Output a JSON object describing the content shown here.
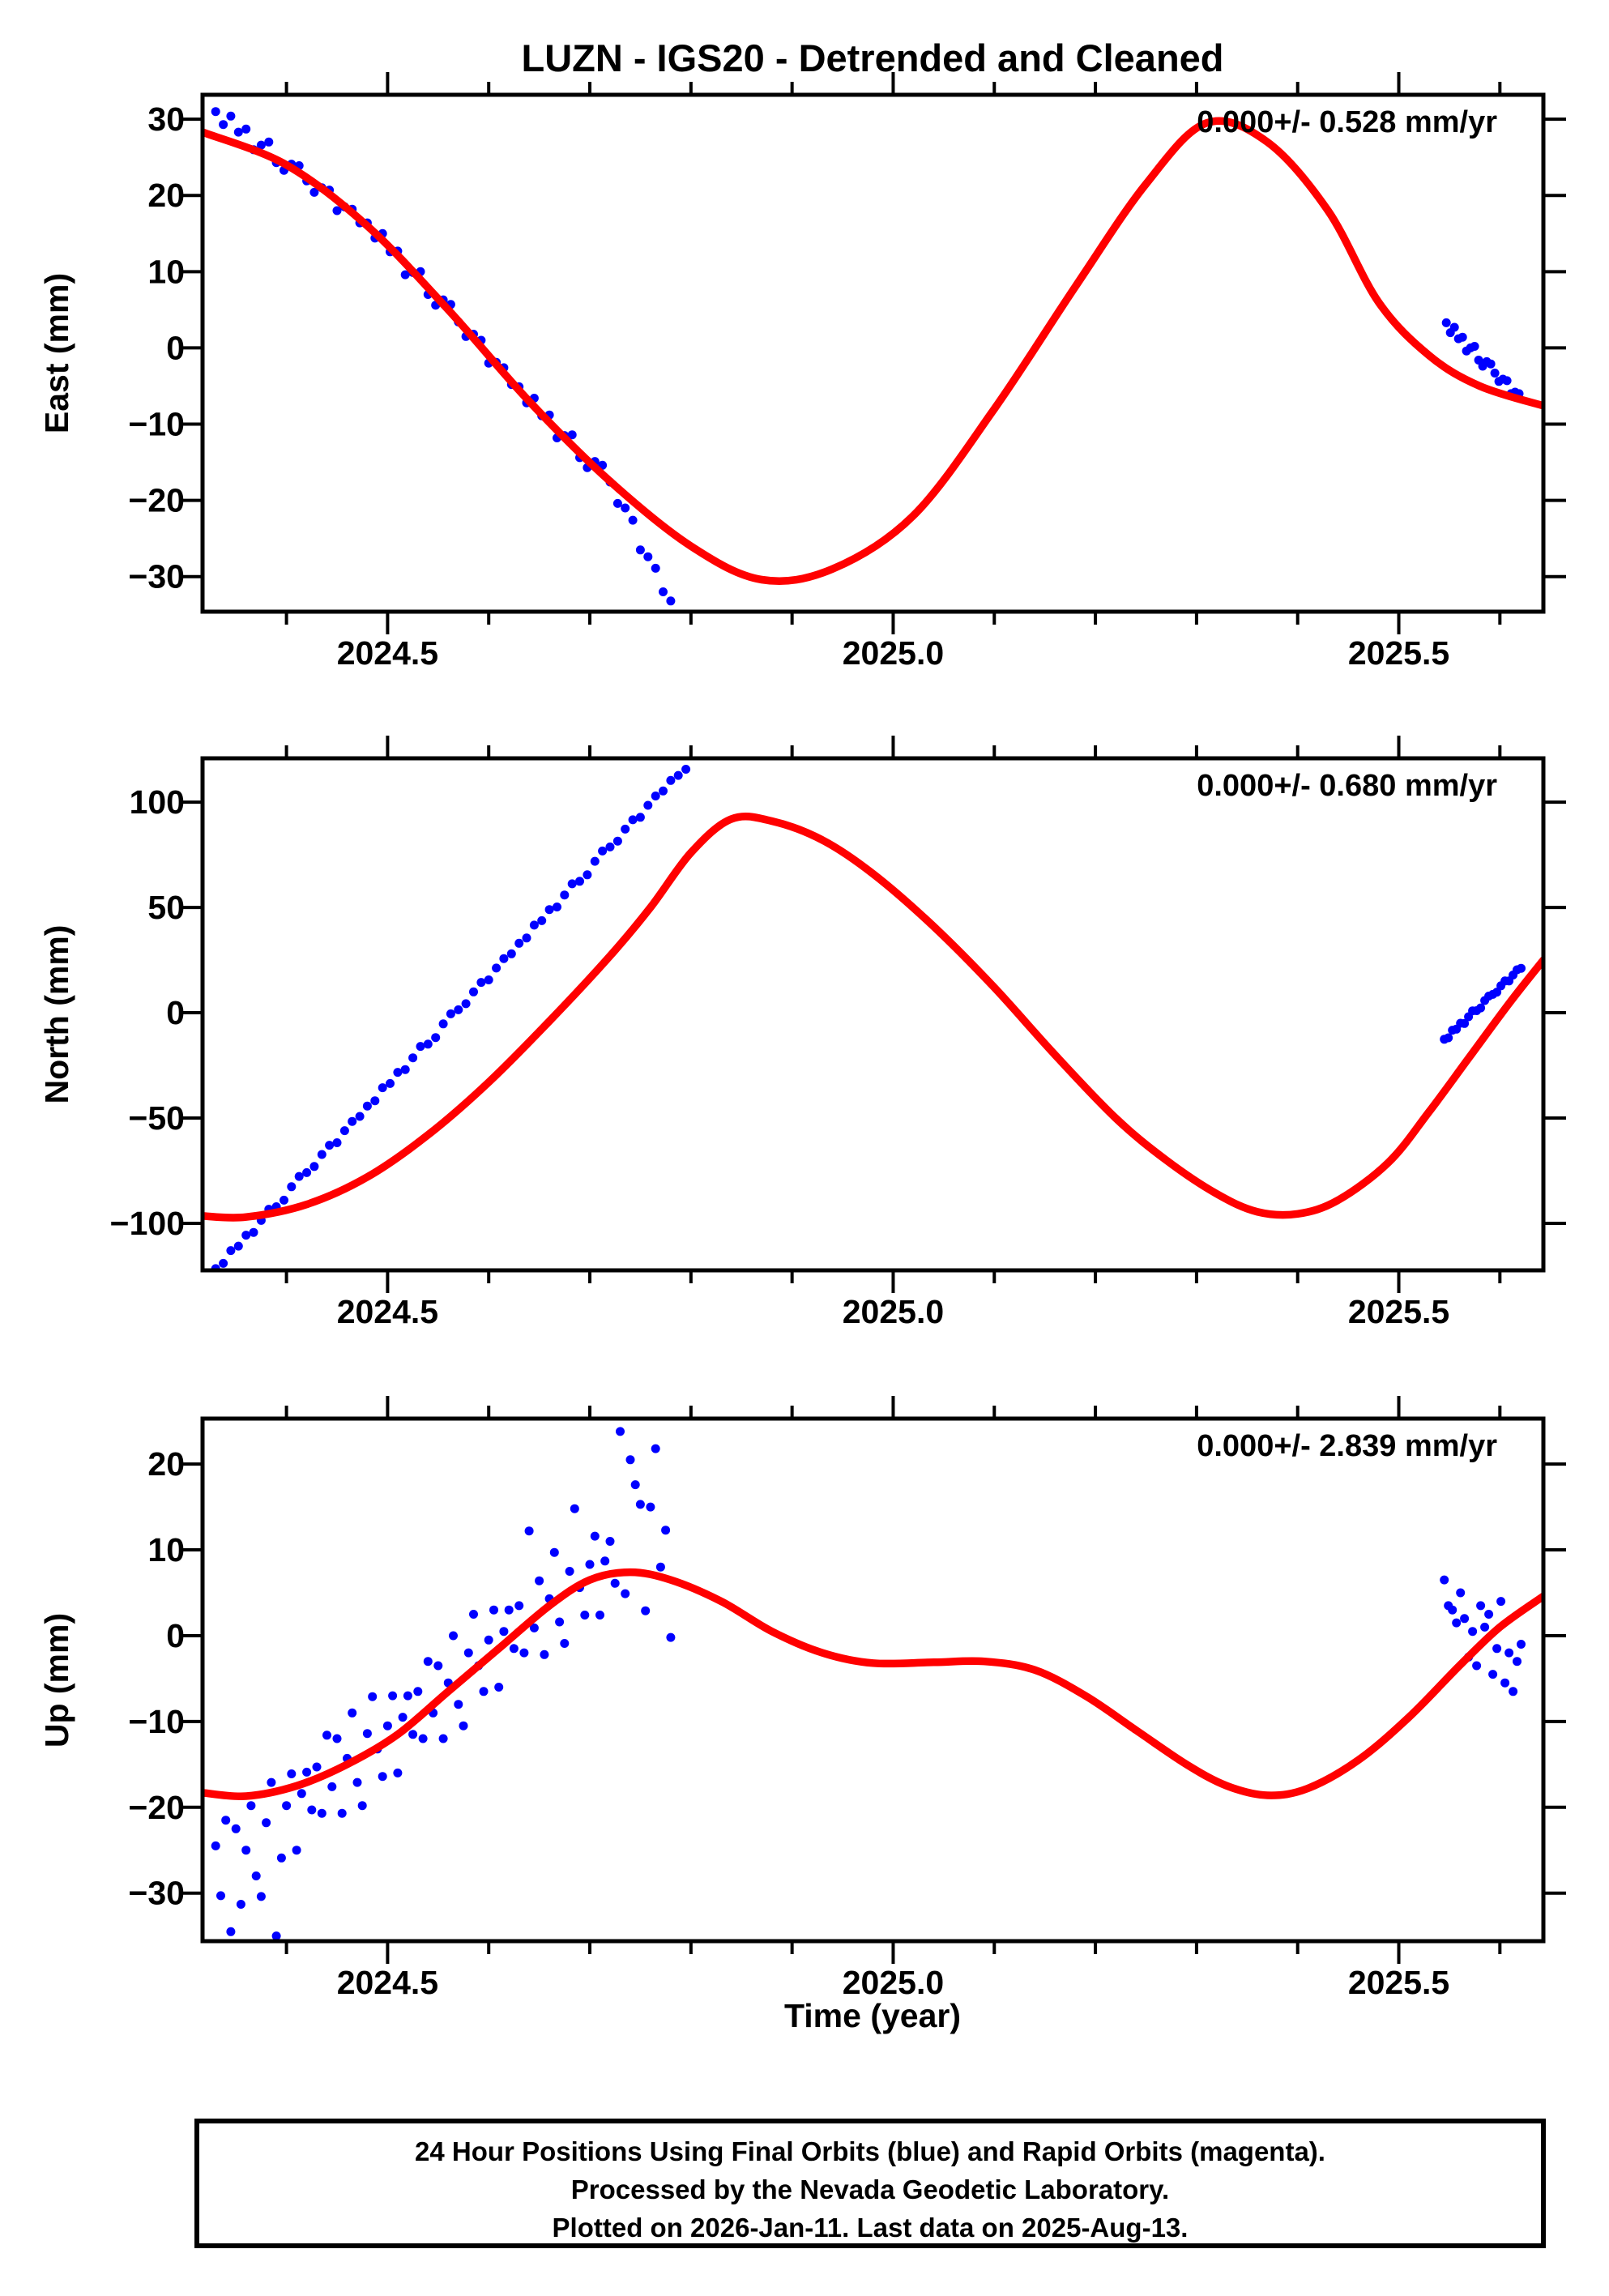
{
  "title": "LUZN - IGS20 - Detrended and Cleaned",
  "xlabel": "Time (year)",
  "footer": {
    "line1": "24 Hour Positions Using Final Orbits (blue) and Rapid Orbits (magenta).",
    "line2": "Processed by the Nevada Geodetic Laboratory.",
    "line3": "Plotted on 2026-Jan-11. Last data on 2025-Aug-13."
  },
  "colors": {
    "final_orbits": "#0000ff",
    "rapid_orbits": "#ff00ff",
    "model": "#ff0000",
    "frame": "#000000"
  },
  "chart_data": {
    "type": "scatter",
    "station": "LUZN",
    "reference_frame": "IGS20",
    "x_range": [
      2024.317,
      2025.643
    ],
    "x_major_ticks": [
      2024.5,
      2025.0,
      2025.5
    ],
    "x_minor_tick_step": 0.1,
    "panels": [
      {
        "id": "east",
        "ylabel": "East (mm)",
        "annotation": "0.000+/- 0.528 mm/yr",
        "rate_mm_yr": 0.0,
        "rate_sigma_mm_yr": 0.528,
        "y_range": [
          -34.6,
          33.2
        ],
        "y_ticks": [
          -30,
          -20,
          -10,
          0,
          10,
          20,
          30
        ],
        "series": [
          {
            "name": "final-orbits-observations",
            "color_key": "final_orbits",
            "segments": [
              {
                "start": 2024.33,
                "step": 0.0075,
                "values": [
                  31.0,
                  29.3,
                  30.4,
                  28.3,
                  28.7,
                  26.0,
                  26.6,
                  27.0,
                  24.3,
                  23.3,
                  24.1,
                  23.9,
                  21.9,
                  20.4,
                  21.0,
                  20.7,
                  18.0,
                  18.5,
                  18.2,
                  16.4,
                  16.4,
                  14.4,
                  15.0,
                  12.6,
                  12.7,
                  9.6,
                  9.9,
                  10.0,
                  7.0,
                  5.6,
                  6.3,
                  5.7,
                  3.4,
                  1.5,
                  1.8,
                  1.0,
                  -2.0,
                  -1.9,
                  -2.6,
                  -4.8,
                  -5.1,
                  -7.2,
                  -6.6,
                  -8.9,
                  -8.8,
                  -11.8,
                  -11.5,
                  -11.4,
                  -14.4,
                  -15.7,
                  -14.9,
                  -15.4,
                  -17.6,
                  -20.4,
                  -21.0,
                  -22.6,
                  -26.5,
                  -27.4,
                  -28.9,
                  -32.0,
                  -33.2
                ]
              },
              {
                "start": 2025.547,
                "step": 0.004,
                "values": [
                  3.3,
                  2.0,
                  2.7,
                  1.2,
                  1.4,
                  -0.4,
                  0.0,
                  0.2,
                  -1.6,
                  -2.4,
                  -1.8,
                  -2.1,
                  -3.3,
                  -4.4,
                  -4.1,
                  -4.3,
                  -6.0,
                  -5.8,
                  -6.0
                ]
              }
            ]
          }
        ],
        "model_curve": [
          [
            2024.317,
            28.3
          ],
          [
            2024.4,
            24.0
          ],
          [
            2024.48,
            16.0
          ],
          [
            2024.56,
            5.0
          ],
          [
            2024.64,
            -7.0
          ],
          [
            2024.72,
            -17.5
          ],
          [
            2024.8,
            -26.0
          ],
          [
            2024.87,
            -30.4
          ],
          [
            2024.94,
            -29.0
          ],
          [
            2025.02,
            -22.0
          ],
          [
            2025.1,
            -8.0
          ],
          [
            2025.18,
            8.0
          ],
          [
            2025.25,
            21.5
          ],
          [
            2025.31,
            29.5
          ],
          [
            2025.37,
            27.0
          ],
          [
            2025.43,
            18.0
          ],
          [
            2025.48,
            6.0
          ],
          [
            2025.53,
            -1.0
          ],
          [
            2025.58,
            -5.0
          ],
          [
            2025.643,
            -7.6
          ]
        ]
      },
      {
        "id": "north",
        "ylabel": "North (mm)",
        "annotation": "0.000+/- 0.680 mm/yr",
        "rate_mm_yr": 0.0,
        "rate_sigma_mm_yr": 0.68,
        "y_range": [
          -122.3,
          120.8
        ],
        "y_ticks": [
          -100,
          -50,
          0,
          50,
          100
        ],
        "series": [
          {
            "name": "final-orbits-observations",
            "color_key": "final_orbits",
            "segments": [
              {
                "start": 2024.33,
                "step": 0.0075,
                "values": [
                  -121.5,
                  -119.0,
                  -112.9,
                  -110.8,
                  -105.6,
                  -104.3,
                  -98.6,
                  -93.3,
                  -92.1,
                  -89.0,
                  -82.6,
                  -77.7,
                  -75.9,
                  -73.0,
                  -67.3,
                  -62.9,
                  -61.7,
                  -56.0,
                  -51.6,
                  -49.2,
                  -44.3,
                  -41.8,
                  -35.6,
                  -33.6,
                  -28.3,
                  -27.0,
                  -21.4,
                  -16.0,
                  -14.9,
                  -11.8,
                  -5.3,
                  -0.5,
                  1.4,
                  4.3,
                  9.9,
                  14.4,
                  15.6,
                  21.2,
                  25.7,
                  28.0,
                  33.0,
                  35.5,
                  41.6,
                  43.7,
                  49.0,
                  50.2,
                  55.9,
                  61.2,
                  62.4,
                  65.5,
                  71.9,
                  76.8,
                  78.7,
                  81.5,
                  87.2,
                  91.6,
                  92.8,
                  98.5,
                  102.9,
                  105.3,
                  110.3,
                  112.7,
                  115.6
                ]
              },
              {
                "start": 2025.545,
                "step": 0.004,
                "values": [
                  -12.6,
                  -11.9,
                  -8.3,
                  -7.8,
                  -5.0,
                  -5.1,
                  -1.9,
                  0.9,
                  1.0,
                  2.3,
                  5.8,
                  7.9,
                  8.7,
                  9.8,
                  12.8,
                  15.1,
                  15.1,
                  17.9,
                  20.4,
                  21.1
                ]
              }
            ]
          }
        ],
        "model_curve": [
          [
            2024.317,
            -96.5
          ],
          [
            2024.36,
            -97.0
          ],
          [
            2024.42,
            -91.0
          ],
          [
            2024.48,
            -78.0
          ],
          [
            2024.54,
            -58.0
          ],
          [
            2024.6,
            -33.0
          ],
          [
            2024.66,
            -4.0
          ],
          [
            2024.72,
            27.0
          ],
          [
            2024.76,
            50.0
          ],
          [
            2024.8,
            76.0
          ],
          [
            2024.84,
            92.0
          ],
          [
            2024.88,
            91.0
          ],
          [
            2024.93,
            82.0
          ],
          [
            2024.98,
            66.0
          ],
          [
            2025.04,
            41.0
          ],
          [
            2025.1,
            12.0
          ],
          [
            2025.16,
            -20.0
          ],
          [
            2025.22,
            -50.0
          ],
          [
            2025.27,
            -70.0
          ],
          [
            2025.32,
            -86.0
          ],
          [
            2025.36,
            -94.5
          ],
          [
            2025.4,
            -95.5
          ],
          [
            2025.44,
            -89.0
          ],
          [
            2025.49,
            -71.0
          ],
          [
            2025.53,
            -47.0
          ],
          [
            2025.57,
            -21.0
          ],
          [
            2025.61,
            5.0
          ],
          [
            2025.643,
            25.0
          ]
        ]
      },
      {
        "id": "up",
        "ylabel": "Up (mm)",
        "annotation": "0.000+/- 2.839 mm/yr",
        "rate_mm_yr": 0.0,
        "rate_sigma_mm_yr": 2.839,
        "y_range": [
          -35.6,
          25.3
        ],
        "y_ticks": [
          -30,
          -20,
          -10,
          0,
          10,
          20
        ],
        "series": [
          {
            "name": "final-orbits-observations",
            "color_key": "final_orbits",
            "segments": [
              {
                "start": 2024.33,
                "step": 0.005,
                "values": [
                  -24.5,
                  -30.3,
                  -21.5,
                  -34.5,
                  -22.5,
                  -31.3,
                  -25.0,
                  -19.8,
                  -28.0,
                  -30.4,
                  -21.8,
                  -17.1,
                  -35.0,
                  -25.9,
                  -19.8,
                  -16.1,
                  -25.0,
                  -18.4,
                  -15.9,
                  -20.3,
                  -15.3,
                  -20.7,
                  -11.6,
                  -17.6,
                  -12.0,
                  -20.7,
                  -14.3,
                  -9.0,
                  -17.1,
                  -19.8,
                  -11.4,
                  -7.1,
                  -13.2,
                  -16.4,
                  -10.5,
                  -7.0,
                  -16.0,
                  -9.5,
                  -7.0,
                  -11.5,
                  -6.5,
                  -12.0,
                  -3.0,
                  -9.0,
                  -3.5,
                  -12.0,
                  -5.5,
                  0.0,
                  -8.0,
                  -10.5,
                  -2.0,
                  2.5,
                  -3.5,
                  -6.5,
                  -0.5,
                  3.0,
                  -6.0,
                  0.5,
                  3.0,
                  -1.5,
                  3.5,
                  -2.0,
                  12.2,
                  0.9,
                  6.4,
                  -2.2,
                  4.3,
                  9.7,
                  1.6,
                  -0.9,
                  7.5,
                  14.8,
                  5.6,
                  2.4,
                  8.3,
                  11.6,
                  2.4,
                  8.7,
                  11.0,
                  6.1,
                  23.8,
                  4.9,
                  20.5,
                  17.6,
                  15.3,
                  2.9,
                  15.0,
                  21.8,
                  8.0,
                  12.3,
                  -0.2
                ]
              },
              {
                "start": 2025.545,
                "step": 0.004,
                "values": [
                  6.5,
                  3.5,
                  3.0,
                  1.5,
                  5.0,
                  2.0,
                  -2.5,
                  0.5,
                  -3.5,
                  3.5,
                  1.0,
                  2.5,
                  -4.5,
                  -1.5,
                  4.0,
                  -5.5,
                  -2.0,
                  -6.5,
                  -3.0,
                  -1.0
                ]
              }
            ]
          }
        ],
        "model_curve": [
          [
            2024.317,
            -18.3
          ],
          [
            2024.36,
            -18.7
          ],
          [
            2024.41,
            -17.5
          ],
          [
            2024.46,
            -15.0
          ],
          [
            2024.51,
            -11.5
          ],
          [
            2024.56,
            -6.5
          ],
          [
            2024.61,
            -1.5
          ],
          [
            2024.66,
            3.5
          ],
          [
            2024.7,
            6.5
          ],
          [
            2024.74,
            7.4
          ],
          [
            2024.78,
            6.5
          ],
          [
            2024.83,
            4.0
          ],
          [
            2024.88,
            0.5
          ],
          [
            2024.93,
            -2.0
          ],
          [
            2024.98,
            -3.2
          ],
          [
            2025.04,
            -3.1
          ],
          [
            2025.09,
            -3.0
          ],
          [
            2025.14,
            -4.0
          ],
          [
            2025.19,
            -7.0
          ],
          [
            2025.24,
            -11.0
          ],
          [
            2025.29,
            -15.0
          ],
          [
            2025.33,
            -17.5
          ],
          [
            2025.37,
            -18.6
          ],
          [
            2025.41,
            -17.8
          ],
          [
            2025.46,
            -14.5
          ],
          [
            2025.51,
            -9.5
          ],
          [
            2025.56,
            -3.5
          ],
          [
            2025.6,
            1.0
          ],
          [
            2025.643,
            4.6
          ]
        ]
      }
    ]
  }
}
